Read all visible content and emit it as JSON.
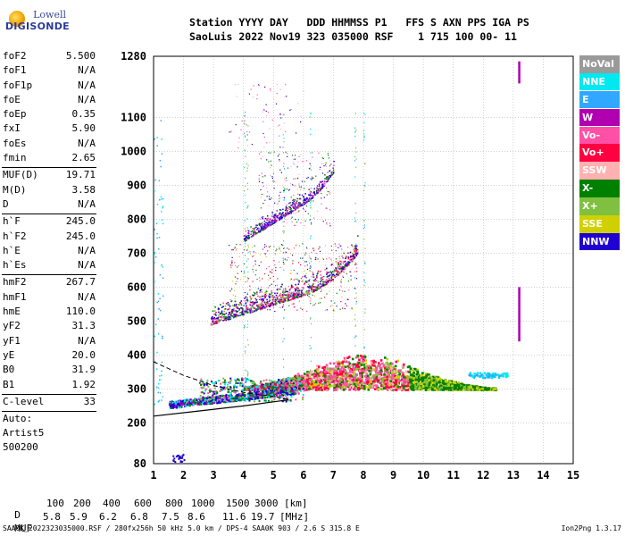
{
  "logo": {
    "line1": "Lowell",
    "line2": "DIGISONDE"
  },
  "header": {
    "line1": "Station YYYY DAY   DDD HHMMSS P1   FFS S AXN PPS IGA PS",
    "line2": "SaoLuis 2022 Nov19 323 035000 RSF    1 715 100 00- 11"
  },
  "params_a": [
    {
      "label": "foF2",
      "value": "5.500"
    },
    {
      "label": "foF1",
      "value": "N/A"
    },
    {
      "label": "foF1p",
      "value": "N/A"
    },
    {
      "label": "foE",
      "value": "N/A"
    },
    {
      "label": "foEp",
      "value": "0.35"
    },
    {
      "label": "fxI",
      "value": "5.90"
    },
    {
      "label": "foEs",
      "value": "N/A"
    },
    {
      "label": "fmin",
      "value": "2.65"
    }
  ],
  "params_b": [
    {
      "label": "MUF(D)",
      "value": "19.71"
    },
    {
      "label": "M(D)",
      "value": "3.58"
    },
    {
      "label": "D",
      "value": "N/A"
    }
  ],
  "params_c": [
    {
      "label": "h`F",
      "value": "245.0"
    },
    {
      "label": "h`F2",
      "value": "245.0"
    },
    {
      "label": "h`E",
      "value": "N/A"
    },
    {
      "label": "h`Es",
      "value": "N/A"
    }
  ],
  "params_d": [
    {
      "label": "hmF2",
      "value": "267.7"
    },
    {
      "label": "hmF1",
      "value": "N/A"
    },
    {
      "label": "hmE",
      "value": "110.0"
    },
    {
      "label": "yF2",
      "value": "31.3"
    },
    {
      "label": "yF1",
      "value": "N/A"
    },
    {
      "label": "yE",
      "value": "20.0"
    },
    {
      "label": "B0",
      "value": "31.9"
    },
    {
      "label": "B1",
      "value": "1.92"
    }
  ],
  "params_e": [
    {
      "label": "C-level",
      "value": "33"
    }
  ],
  "scaling": {
    "line1": "Auto:",
    "line2": "Artist5",
    "line3": "500200"
  },
  "legend": [
    {
      "label": "NoVal",
      "color": "#9a9a9a"
    },
    {
      "label": "NNE",
      "color": "#00e8f0"
    },
    {
      "label": "E",
      "color": "#30a8ff"
    },
    {
      "label": "W",
      "color": "#b000b0"
    },
    {
      "label": "Vo-",
      "color": "#ff50a8"
    },
    {
      "label": "Vo+",
      "color": "#ff0040"
    },
    {
      "label": "SSW",
      "color": "#ffb0b0"
    },
    {
      "label": "X-",
      "color": "#008000"
    },
    {
      "label": "X+",
      "color": "#80c040"
    },
    {
      "label": "SSE",
      "color": "#d0d000"
    },
    {
      "label": "NNW",
      "color": "#2000d0"
    }
  ],
  "muf_table": {
    "d_label": "D",
    "muf_label": "MUF",
    "d_values": [
      "100",
      "200",
      "400",
      "600",
      "800",
      "1000",
      "1500",
      "3000"
    ],
    "d_unit": "[km]",
    "muf_values": [
      "5.8",
      "5.9",
      "6.2",
      "6.8",
      "7.5",
      "8.6",
      "11.6",
      "19.7"
    ],
    "muf_unit": "[MHz]"
  },
  "footer": {
    "left": "SAA0K_2022323035000.RSF / 280fx256h 50 kHz 5.0 km / DPS-4 SAA0K 903 / 2.6 S 315.8 E",
    "right": "Ion2Png 1.3.17"
  },
  "chart_data": {
    "type": "scatter",
    "title": "",
    "xlabel": "",
    "ylabel": "",
    "xlim": [
      1,
      15
    ],
    "ylim": [
      80,
      1280
    ],
    "x_ticks": [
      1,
      2,
      3,
      4,
      5,
      6,
      7,
      8,
      9,
      10,
      11,
      12,
      13,
      14,
      15
    ],
    "y_ticks": [
      80,
      200,
      300,
      400,
      500,
      600,
      700,
      800,
      900,
      1000,
      1100,
      1280
    ],
    "grid": true,
    "clusters": [
      {
        "name": "O-trace F2",
        "x_range": [
          1.5,
          7.9
        ],
        "h_min": 240,
        "h_max": 360,
        "color": "#2000d0"
      },
      {
        "name": "Main spread F",
        "x_range": [
          4.0,
          12.4
        ],
        "h_min": 300,
        "h_max": 420,
        "color": "#ff0040"
      },
      {
        "name": "2nd hop",
        "x_range": [
          2.9,
          7.8
        ],
        "h_min": 490,
        "h_max": 700,
        "color": "#2000d0"
      },
      {
        "name": "3rd hop",
        "x_range": [
          4.0,
          7.0
        ],
        "h_min": 730,
        "h_max": 990,
        "color": "#2000d0"
      }
    ],
    "profile_solid": [
      [
        1.0,
        220
      ],
      [
        2.5,
        235
      ],
      [
        4.0,
        250
      ],
      [
        5.0,
        262
      ],
      [
        5.5,
        268
      ]
    ],
    "profile_dashed": [
      [
        1.0,
        380
      ],
      [
        2.0,
        340
      ],
      [
        3.0,
        310
      ],
      [
        4.0,
        290
      ],
      [
        5.0,
        278
      ],
      [
        5.5,
        270
      ]
    ],
    "markers": [
      {
        "x": 13.2,
        "h_from": 1200,
        "h_to": 1265,
        "color": "#b000b0"
      },
      {
        "x": 13.2,
        "h_from": 440,
        "h_to": 600,
        "color": "#b000b0"
      }
    ]
  }
}
